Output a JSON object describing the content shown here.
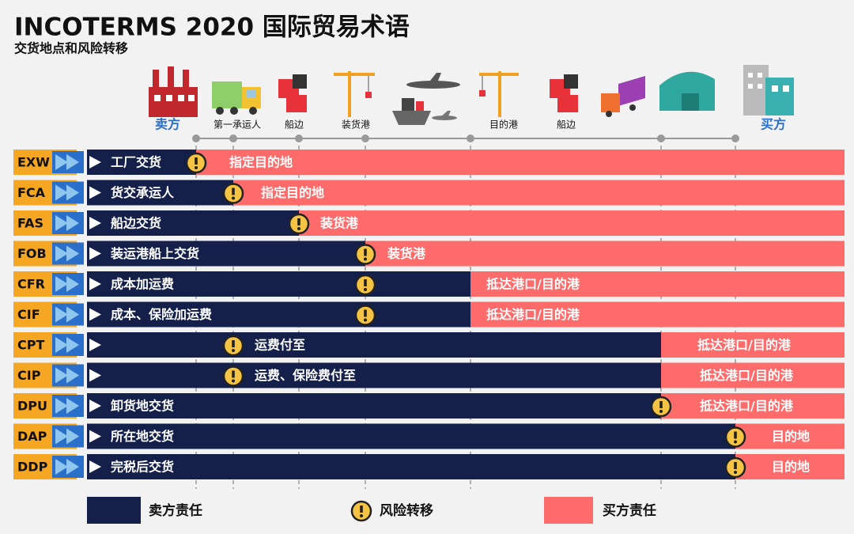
{
  "header": {
    "title": "INCOTERMS 2020 国际贸易术语",
    "subtitle": "交货地点和风险转移"
  },
  "stages": [
    {
      "label": "卖方"
    },
    {
      "label": "第一承运人"
    },
    {
      "label": "船边"
    },
    {
      "label": "装货港"
    },
    {
      "label": "目的港"
    },
    {
      "label": "船边"
    },
    {
      "label": "买方"
    }
  ],
  "rows": [
    {
      "code": "EXW",
      "seller": "工厂交货",
      "buyer": "指定目的地"
    },
    {
      "code": "FCA",
      "seller": "货交承运人",
      "buyer": "指定目的地"
    },
    {
      "code": "FAS",
      "seller": "船边交货",
      "buyer": "装货港"
    },
    {
      "code": "FOB",
      "seller": "装运港船上交货",
      "buyer": "装货港"
    },
    {
      "code": "CFR",
      "seller": "成本加运费",
      "buyer": "抵达港口/目的港"
    },
    {
      "code": "CIF",
      "seller": "成本、保险加运费",
      "buyer": "抵达港口/目的港"
    },
    {
      "code": "CPT",
      "seller": "运费付至",
      "buyer": "抵达港口/目的港"
    },
    {
      "code": "CIP",
      "seller": "运费、保险费付至",
      "buyer": "抵达港口/目的港"
    },
    {
      "code": "DPU",
      "seller": "卸货地交货",
      "buyer": "抵达港口/目的港"
    },
    {
      "code": "DAP",
      "seller": "所在地交货",
      "buyer": "目的地"
    },
    {
      "code": "DDP",
      "seller": "完税后交货",
      "buyer": "目的地"
    }
  ],
  "legend": {
    "seller": "卖方责任",
    "risk": "风险转移",
    "buyer": "买方责任"
  }
}
